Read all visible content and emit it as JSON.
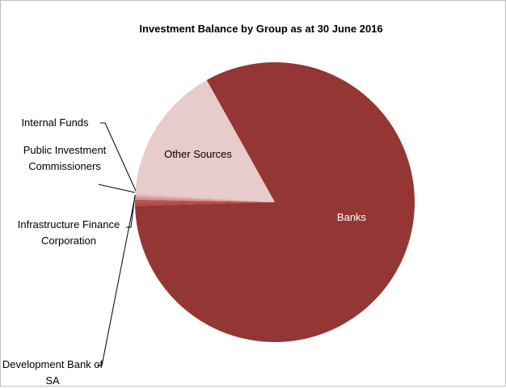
{
  "chart_data": {
    "type": "pie",
    "title": "Investment Balance by Group as at 30 June 2016",
    "categories": [
      "Banks",
      "Development Bank of SA",
      "Infrastructure Finance Corporation",
      "Public Investment Commissioners",
      "Internal Funds",
      "Other Sources"
    ],
    "values": [
      82.7,
      0.4,
      0.3,
      0.4,
      0.3,
      15.9
    ],
    "colors": [
      "#943634",
      "#b04a47",
      "#c0504d",
      "#d99694",
      "#e6b9b8",
      "#e8cbcb"
    ]
  }
}
